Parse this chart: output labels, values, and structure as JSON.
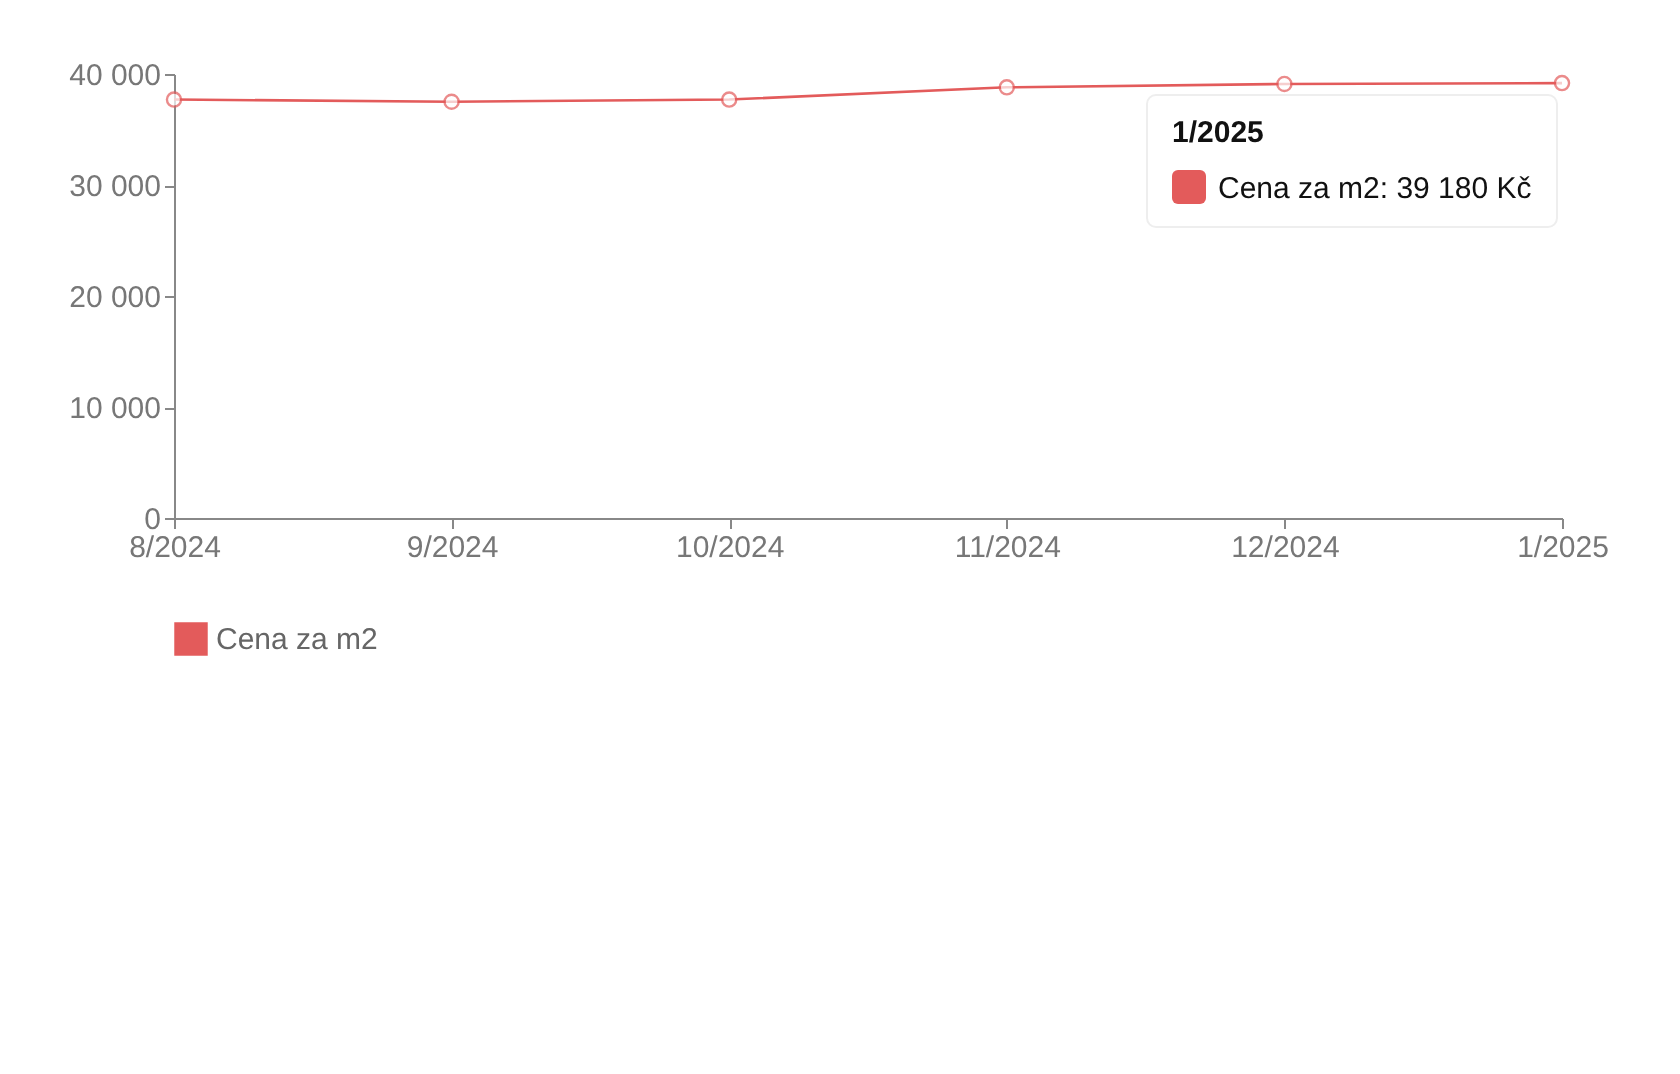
{
  "chart_data": {
    "type": "line",
    "categories": [
      "8/2024",
      "9/2024",
      "10/2024",
      "11/2024",
      "12/2024",
      "1/2025"
    ],
    "series": [
      {
        "name": "Cena za m2",
        "color": "#e35b5b",
        "values": [
          37700,
          37500,
          37700,
          38800,
          39100,
          39180
        ]
      }
    ],
    "ylim": [
      0,
      40000
    ],
    "yticks": [
      0,
      {
        "value": 10000,
        "label": "10 000"
      },
      {
        "value": 20000,
        "label": "20 000"
      },
      {
        "value": 30000,
        "label": "30 000"
      },
      {
        "value": 40000,
        "label": "40 000"
      }
    ],
    "marker": "circle",
    "legend": "bottom",
    "grid": false,
    "annotations": [
      "1/2025",
      "Cena za m2: 39 180 Kč"
    ]
  }
}
